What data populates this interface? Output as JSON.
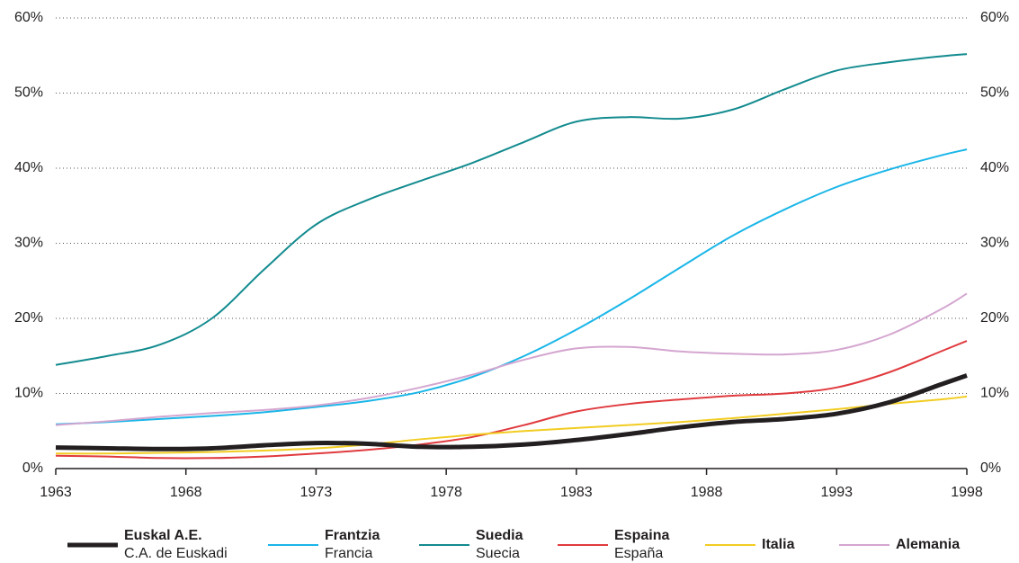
{
  "chart_data": {
    "type": "line",
    "x": [
      1963,
      1965,
      1967,
      1969,
      1971,
      1973,
      1975,
      1977,
      1979,
      1981,
      1983,
      1985,
      1987,
      1989,
      1991,
      1993,
      1995,
      1997,
      1998
    ],
    "series": [
      {
        "name": "Euskal A.E.",
        "subname": "C.A. de Euskadi",
        "color": "#231f20",
        "values": [
          2.8,
          2.7,
          2.6,
          2.7,
          3.1,
          3.4,
          3.3,
          2.9,
          2.9,
          3.2,
          3.8,
          4.6,
          5.5,
          6.2,
          6.6,
          7.3,
          8.8,
          11.2,
          12.4
        ]
      },
      {
        "name": "Frantzia",
        "subname": "Francia",
        "color": "#1ab6e8",
        "values": [
          5.9,
          6.2,
          6.6,
          7.0,
          7.5,
          8.2,
          9.0,
          10.2,
          12.2,
          15.0,
          18.5,
          22.5,
          26.8,
          31.0,
          34.5,
          37.5,
          39.8,
          41.7,
          42.5
        ]
      },
      {
        "name": "Suedia",
        "subname": "Suecia",
        "color": "#138b8f",
        "values": [
          13.8,
          15.0,
          16.5,
          20.0,
          26.5,
          32.5,
          35.8,
          38.3,
          40.7,
          43.5,
          46.2,
          46.8,
          46.6,
          47.8,
          50.5,
          53.0,
          54.1,
          54.9,
          55.2
        ]
      },
      {
        "name": "Espaina",
        "subname": "España",
        "color": "#e03a3e",
        "values": [
          1.7,
          1.6,
          1.4,
          1.4,
          1.6,
          2.0,
          2.5,
          3.2,
          4.2,
          5.8,
          7.6,
          8.6,
          9.2,
          9.7,
          10.0,
          10.8,
          12.8,
          15.6,
          17.0
        ]
      },
      {
        "name": "Italia",
        "color": "#f2cc21",
        "values": [
          2.0,
          2.0,
          2.1,
          2.2,
          2.4,
          2.7,
          3.2,
          3.9,
          4.5,
          5.0,
          5.4,
          5.8,
          6.2,
          6.7,
          7.3,
          7.9,
          8.6,
          9.2,
          9.6
        ]
      },
      {
        "name": "Alemania",
        "color": "#d4a6d0",
        "values": [
          5.8,
          6.3,
          6.9,
          7.4,
          7.8,
          8.4,
          9.4,
          10.8,
          12.5,
          14.5,
          16.0,
          16.2,
          15.6,
          15.3,
          15.2,
          15.8,
          17.8,
          21.2,
          23.3
        ]
      }
    ],
    "xlim": [
      1963,
      1998
    ],
    "xticks": [
      1963,
      1968,
      1973,
      1978,
      1983,
      1988,
      1993,
      1998
    ],
    "ylim": [
      0,
      60
    ],
    "yticks": [
      {
        "value": 0,
        "label": "0%"
      },
      {
        "value": 10,
        "label": "10%"
      },
      {
        "value": 20,
        "label": "20%"
      },
      {
        "value": 30,
        "label": "30%"
      },
      {
        "value": 40,
        "label": "40%"
      },
      {
        "value": 50,
        "label": "50%"
      },
      {
        "value": 60,
        "label": "60%"
      }
    ],
    "grid": true,
    "right_axis_labels": true
  }
}
